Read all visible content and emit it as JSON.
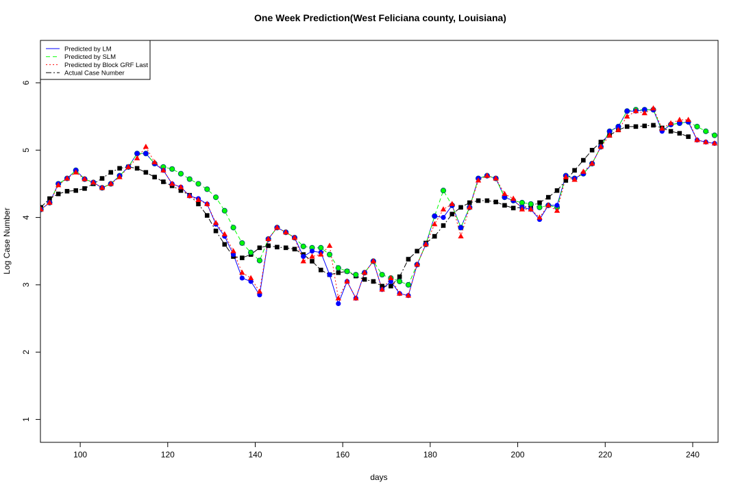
{
  "chart_data": {
    "type": "line",
    "title": "One Week Prediction(West Feliciana county, Louisiana)",
    "x_label": "days",
    "y_label": "Log Case Number",
    "xlim": [
      90.9,
      245.8
    ],
    "ylim": [
      0.66,
      6.63
    ],
    "xticks": [
      100,
      120,
      140,
      160,
      180,
      200,
      220,
      240
    ],
    "yticks": [
      1,
      2,
      3,
      4,
      5,
      6
    ],
    "legend": "top-left",
    "x": [
      91,
      93,
      95,
      97,
      99,
      101,
      103,
      105,
      107,
      109,
      111,
      113,
      115,
      117,
      119,
      121,
      123,
      125,
      127,
      129,
      131,
      133,
      135,
      137,
      139,
      141,
      143,
      145,
      147,
      149,
      151,
      153,
      155,
      157,
      159,
      161,
      163,
      165,
      167,
      169,
      171,
      173,
      175,
      177,
      179,
      181,
      183,
      185,
      187,
      189,
      191,
      193,
      195,
      197,
      199,
      201,
      203,
      205,
      207,
      209,
      211,
      213,
      215,
      217,
      219,
      221,
      223,
      225,
      227,
      229,
      231,
      233,
      235,
      237,
      239,
      241,
      243,
      245
    ],
    "series": [
      {
        "name": "Predicted by LM",
        "color": "#0000ff",
        "values": [
          4.12,
          4.22,
          4.5,
          4.58,
          4.7,
          4.57,
          4.52,
          4.44,
          4.5,
          4.62,
          4.75,
          4.95,
          4.95,
          4.8,
          4.7,
          4.5,
          4.45,
          4.32,
          4.28,
          4.2,
          3.9,
          3.72,
          3.45,
          3.1,
          3.05,
          2.85,
          3.68,
          3.85,
          3.78,
          3.7,
          3.42,
          3.5,
          3.48,
          3.15,
          2.72,
          3.05,
          2.8,
          3.18,
          3.35,
          2.93,
          3.05,
          2.87,
          2.84,
          3.3,
          3.6,
          4.02,
          4.0,
          4.18,
          3.85,
          4.15,
          4.58,
          4.62,
          4.58,
          4.3,
          4.25,
          4.15,
          4.12,
          3.97,
          4.18,
          4.18,
          4.62,
          4.58,
          4.65,
          4.8,
          5.05,
          5.28,
          5.35,
          5.58,
          5.58,
          5.6,
          5.6,
          5.28,
          5.38,
          5.4,
          5.42,
          5.15,
          5.12,
          5.1
        ]
      },
      {
        "name": "Predicted by SLM",
        "color": "#00ff00",
        "values": [
          4.12,
          4.22,
          4.5,
          4.58,
          4.7,
          4.57,
          4.52,
          4.44,
          4.5,
          4.62,
          4.75,
          4.95,
          4.95,
          4.8,
          4.75,
          4.72,
          4.65,
          4.57,
          4.5,
          4.42,
          4.3,
          4.1,
          3.85,
          3.62,
          3.48,
          3.36,
          3.68,
          3.85,
          3.78,
          3.7,
          3.57,
          3.55,
          3.55,
          3.45,
          3.25,
          3.2,
          3.15,
          3.18,
          3.35,
          3.15,
          3.1,
          3.05,
          3.0,
          3.3,
          3.6,
          4.02,
          4.4,
          4.18,
          3.85,
          4.15,
          4.58,
          4.62,
          4.58,
          4.3,
          4.25,
          4.22,
          4.2,
          4.15,
          4.18,
          4.15,
          4.62,
          4.58,
          4.65,
          4.8,
          5.05,
          5.28,
          5.35,
          5.58,
          5.6,
          5.6,
          5.6,
          5.3,
          5.38,
          5.4,
          5.42,
          5.35,
          5.28,
          5.22
        ]
      },
      {
        "name": "Predicted by Block GRF Last",
        "color": "#ff0000",
        "values": [
          4.12,
          4.22,
          4.48,
          4.58,
          4.67,
          4.57,
          4.52,
          4.44,
          4.5,
          4.6,
          4.75,
          4.88,
          5.05,
          4.82,
          4.7,
          4.5,
          4.45,
          4.32,
          4.26,
          4.2,
          3.92,
          3.75,
          3.5,
          3.18,
          3.1,
          2.9,
          3.68,
          3.85,
          3.78,
          3.7,
          3.35,
          3.42,
          3.45,
          3.58,
          2.8,
          3.05,
          2.8,
          3.18,
          3.35,
          2.93,
          3.1,
          2.87,
          2.84,
          3.3,
          3.6,
          3.9,
          4.12,
          4.2,
          3.72,
          4.15,
          4.55,
          4.62,
          4.58,
          4.35,
          4.28,
          4.12,
          4.12,
          4.0,
          4.18,
          4.1,
          4.6,
          4.56,
          4.68,
          4.8,
          5.05,
          5.22,
          5.3,
          5.5,
          5.58,
          5.55,
          5.62,
          5.32,
          5.4,
          5.45,
          5.45,
          5.15,
          5.12,
          5.1
        ]
      },
      {
        "name": "Actual Case Number",
        "color": "#000000",
        "values": [
          4.15,
          4.28,
          4.35,
          4.39,
          4.4,
          4.43,
          4.5,
          4.58,
          4.67,
          4.73,
          4.75,
          4.73,
          4.67,
          4.6,
          4.53,
          4.47,
          4.4,
          4.33,
          4.2,
          4.03,
          3.8,
          3.6,
          3.42,
          3.4,
          3.45,
          3.55,
          3.58,
          3.56,
          3.55,
          3.53,
          3.45,
          3.35,
          3.22,
          3.15,
          3.18,
          3.2,
          3.13,
          3.08,
          3.05,
          2.98,
          2.98,
          3.12,
          3.38,
          3.5,
          3.62,
          3.72,
          3.88,
          4.05,
          4.15,
          4.22,
          4.25,
          4.25,
          4.23,
          4.18,
          4.14,
          4.15,
          4.17,
          4.22,
          4.3,
          4.4,
          4.55,
          4.7,
          4.85,
          5.0,
          5.12,
          5.22,
          5.3,
          5.35,
          5.35,
          5.36,
          5.37,
          5.33,
          5.28,
          5.25,
          5.2,
          null,
          null,
          null
        ]
      }
    ]
  }
}
